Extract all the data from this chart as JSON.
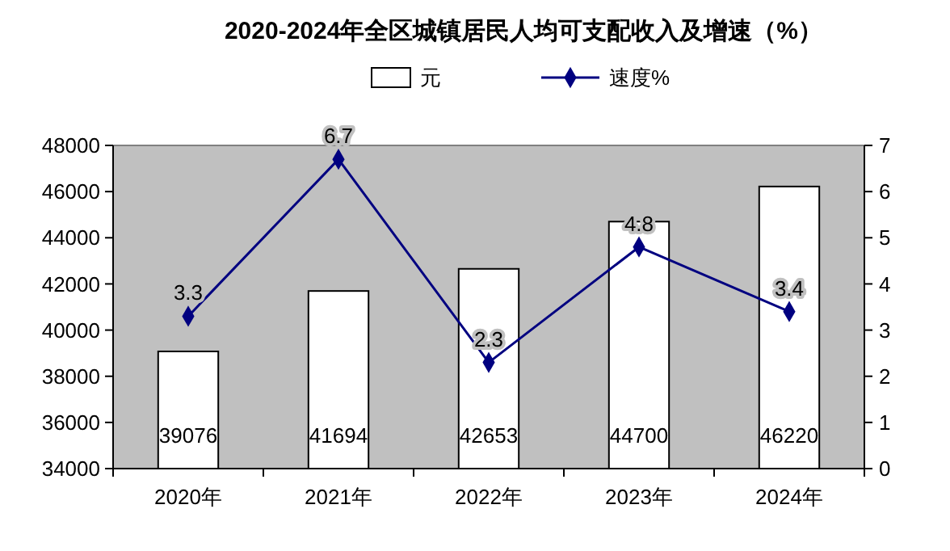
{
  "chart_data": {
    "type": "bar",
    "title": "2020-2024年全区城镇居民人均可支配收入及增速（%）",
    "categories": [
      "2020年",
      "2021年",
      "2022年",
      "2023年",
      "2024年"
    ],
    "series": [
      {
        "name": "元",
        "color": "#ffffff",
        "values": [
          39076,
          41694,
          42653,
          44700,
          46220
        ]
      },
      {
        "name": "速度%",
        "type": "line",
        "axis": "y2",
        "color": "#000080",
        "values": [
          3.3,
          6.7,
          2.3,
          4.8,
          3.4
        ]
      }
    ],
    "ylim": [
      34000,
      48000
    ],
    "yticks": [
      34000,
      36000,
      38000,
      40000,
      42000,
      44000,
      46000,
      48000
    ],
    "y2lim": [
      0,
      7
    ],
    "y2ticks": [
      0,
      1,
      2,
      3,
      4,
      5,
      6,
      7
    ],
    "legend": "top",
    "marker": "diamond",
    "line_style": "solid",
    "data_labels": true
  }
}
